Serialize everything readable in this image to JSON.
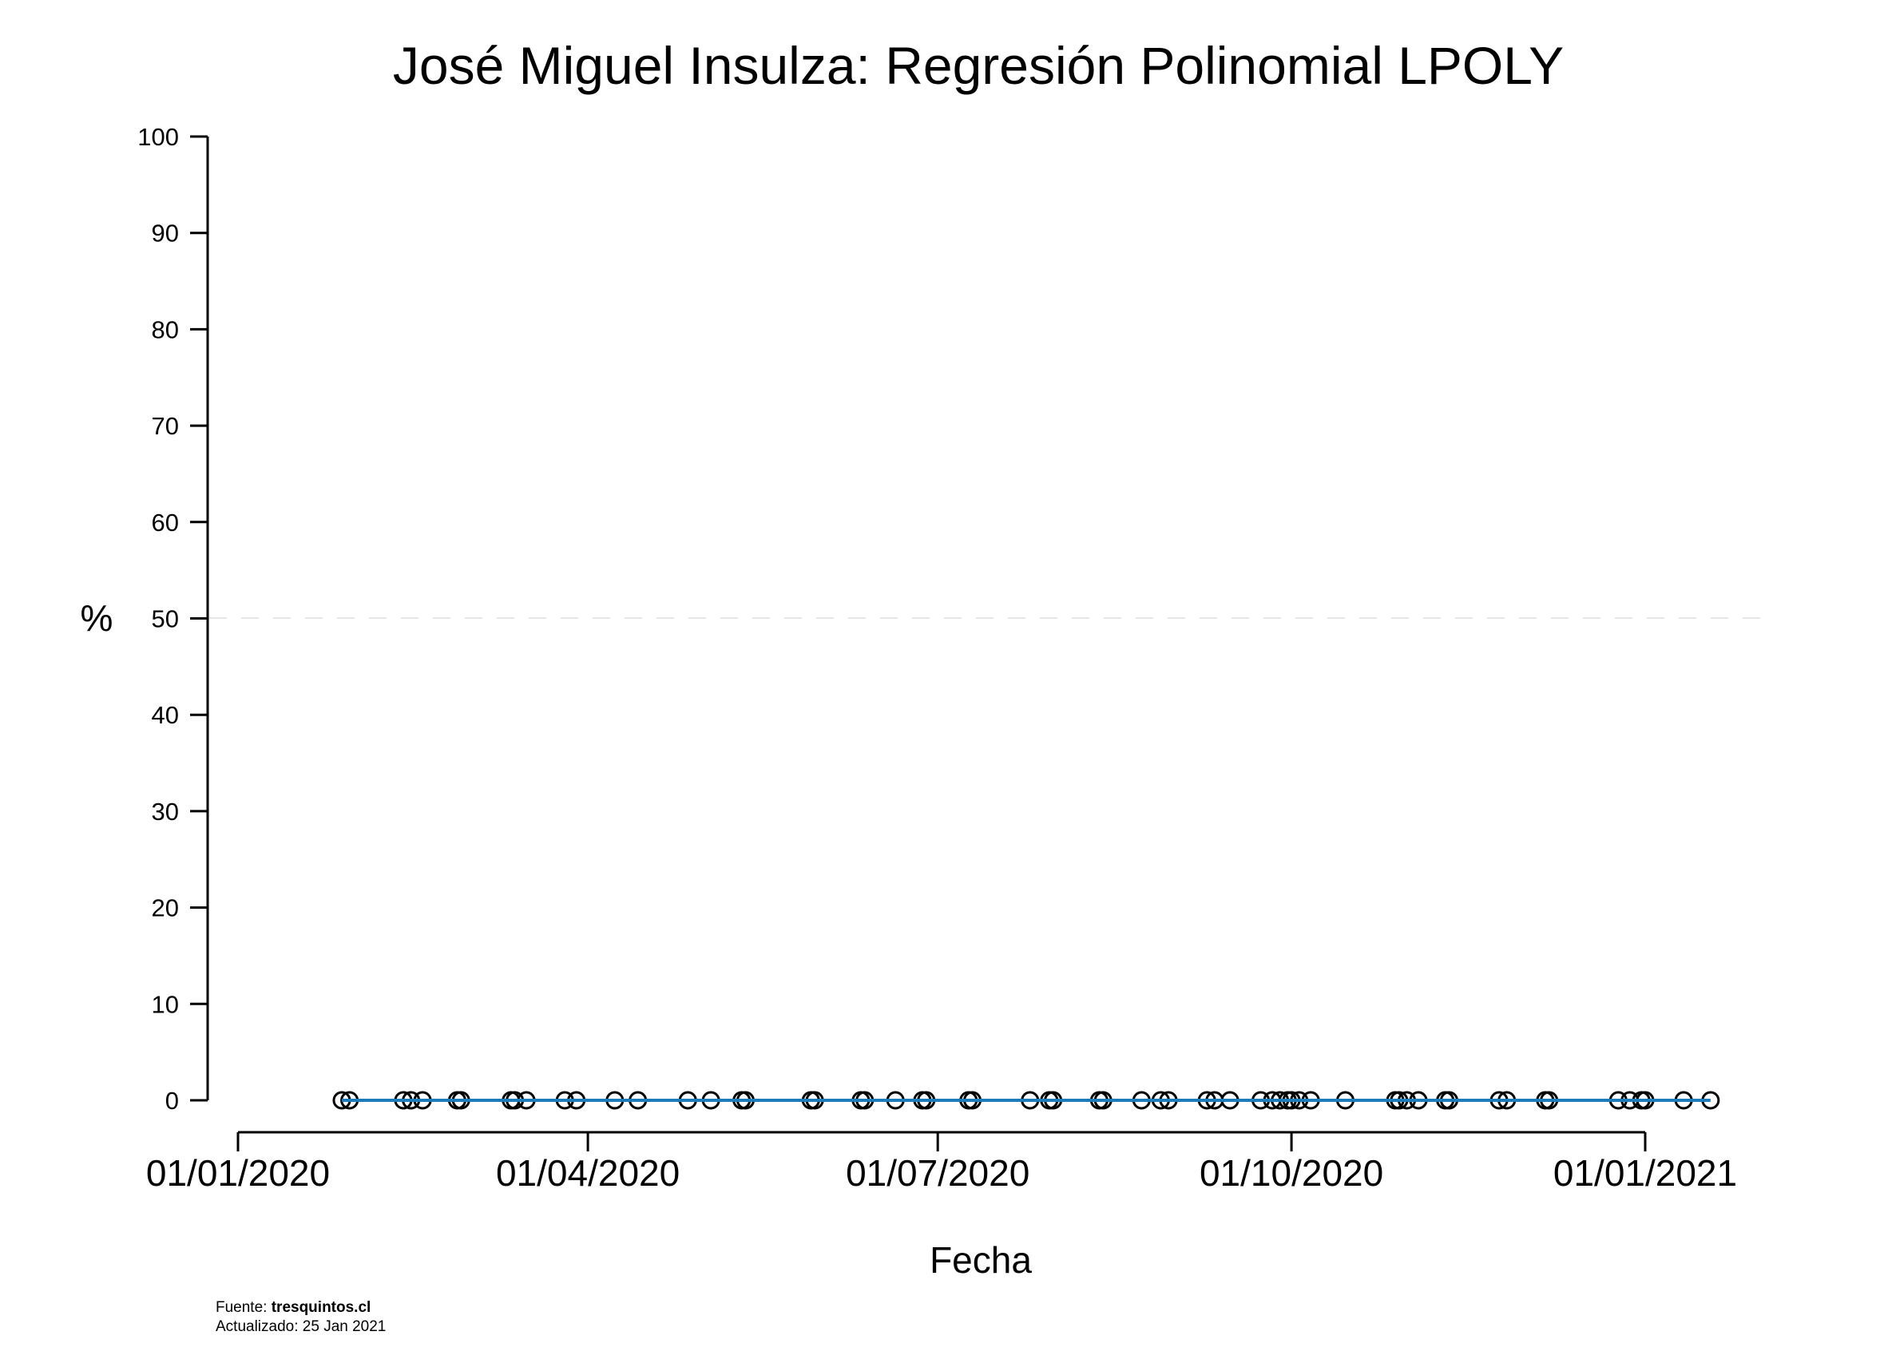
{
  "chart_data": {
    "type": "scatter",
    "title": "José Miguel Insulza: Regresión Polinomial LPOLY",
    "xlabel": "Fecha",
    "ylabel": "%",
    "ylim": [
      0,
      100
    ],
    "yticks": [
      0,
      10,
      20,
      30,
      40,
      50,
      60,
      70,
      80,
      90,
      100
    ],
    "xlim": [
      "2020-01-01",
      "2021-01-01"
    ],
    "xticks": [
      {
        "date": "2020-01-01",
        "label": "01/01/2020"
      },
      {
        "date": "2020-04-01",
        "label": "01/04/2020"
      },
      {
        "date": "2020-07-01",
        "label": "01/07/2020"
      },
      {
        "date": "2020-10-01",
        "label": "01/10/2020"
      },
      {
        "date": "2021-01-01",
        "label": "01/01/2021"
      }
    ],
    "reference_line": {
      "y": 50,
      "style": "dashed",
      "color": "#e6e6e6"
    },
    "grid": false,
    "series": [
      {
        "kind": "points",
        "marker": "open-circle",
        "color": "#000000",
        "x": [
          "2020-01-28",
          "2020-01-30",
          "2020-02-13",
          "2020-02-15",
          "2020-02-18",
          "2020-02-27",
          "2020-02-28",
          "2020-03-12",
          "2020-03-13",
          "2020-03-16",
          "2020-03-26",
          "2020-03-29",
          "2020-04-08",
          "2020-04-14",
          "2020-04-27",
          "2020-05-03",
          "2020-05-11",
          "2020-05-12",
          "2020-05-29",
          "2020-05-30",
          "2020-06-11",
          "2020-06-12",
          "2020-06-20",
          "2020-06-27",
          "2020-06-28",
          "2020-07-09",
          "2020-07-10",
          "2020-07-25",
          "2020-07-30",
          "2020-07-31",
          "2020-08-12",
          "2020-08-13",
          "2020-08-23",
          "2020-08-28",
          "2020-08-30",
          "2020-09-09",
          "2020-09-11",
          "2020-09-15",
          "2020-09-23",
          "2020-09-26",
          "2020-09-28",
          "2020-09-30",
          "2020-10-01",
          "2020-10-03",
          "2020-10-06",
          "2020-10-15",
          "2020-10-28",
          "2020-10-29",
          "2020-10-31",
          "2020-11-03",
          "2020-11-10",
          "2020-11-11",
          "2020-11-24",
          "2020-11-26",
          "2020-12-06",
          "2020-12-07",
          "2020-12-25",
          "2020-12-28",
          "2020-12-31",
          "2021-01-01",
          "2021-01-11",
          "2021-01-18"
        ],
        "y": [
          0,
          0,
          0,
          0,
          0,
          0,
          0,
          0,
          0,
          0,
          0,
          0,
          0,
          0,
          0,
          0,
          0,
          0,
          0,
          0,
          0,
          0,
          0,
          0,
          0,
          0,
          0,
          0,
          0,
          0,
          0,
          0,
          0,
          0,
          0,
          0,
          0,
          0,
          0,
          0,
          0,
          0,
          0,
          0,
          0,
          0,
          0,
          0,
          0,
          0,
          0,
          0,
          0,
          0,
          0,
          0,
          0,
          0,
          0,
          0,
          0,
          0
        ]
      },
      {
        "kind": "fit-line",
        "color": "#1f7ab8",
        "x": [
          "2020-01-28",
          "2021-01-18"
        ],
        "y": [
          0,
          0
        ]
      }
    ]
  },
  "footer": {
    "source_prefix": "Fuente: ",
    "source_name": "tresquintos.cl",
    "updated": "Actualizado: 25 Jan 2021"
  }
}
